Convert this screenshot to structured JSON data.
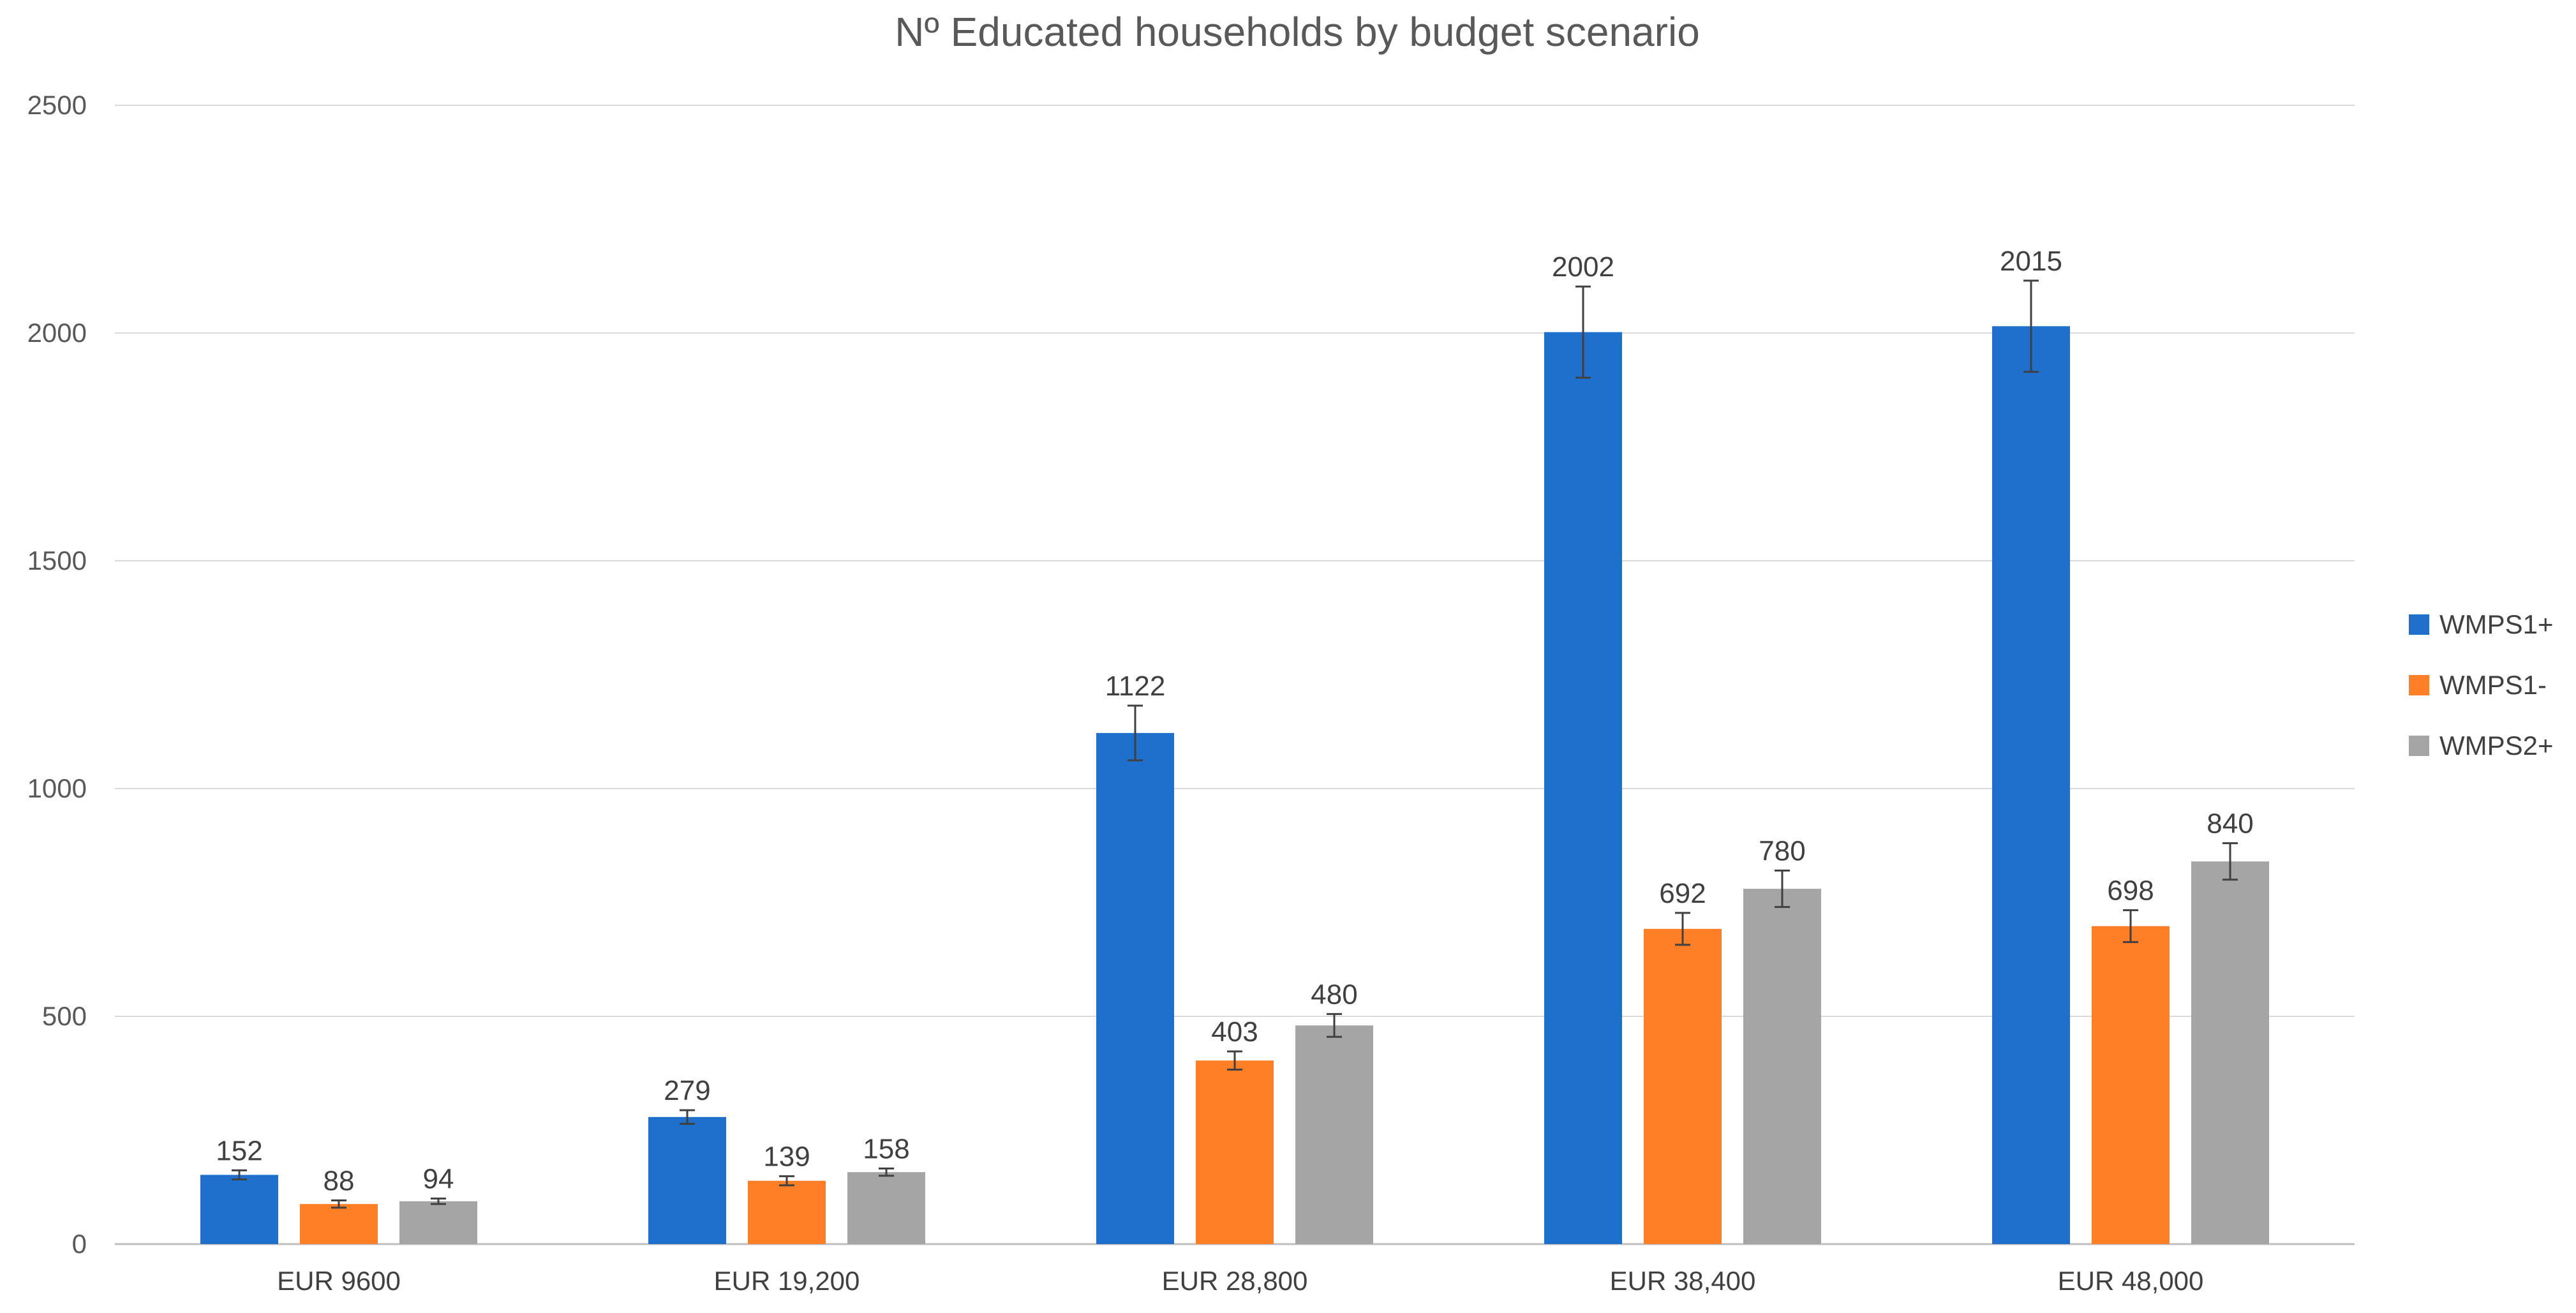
{
  "chart_data": {
    "type": "bar",
    "title": "Nº Educated households by budget scenario",
    "xlabel": "",
    "ylabel": "",
    "ylim": [
      0,
      2500
    ],
    "yticks": [
      0,
      500,
      1000,
      1500,
      2000,
      2500
    ],
    "grid": true,
    "legend_position": "right",
    "categories": [
      "EUR 9600",
      "EUR 19,200",
      "EUR 28,800",
      "EUR 38,400",
      "EUR 48,000"
    ],
    "series": [
      {
        "name": "WMPS1+",
        "color": "#1F6FCC",
        "values": [
          152,
          279,
          1122,
          2002,
          2015
        ],
        "labels": [
          "152",
          "279",
          "1122",
          "2002",
          "2015"
        ],
        "error": [
          10,
          15,
          60,
          100,
          100
        ]
      },
      {
        "name": "WMPS1-",
        "color": "#FF7F27",
        "values": [
          88,
          139,
          403,
          692,
          698
        ],
        "labels": [
          "88",
          "139",
          "403",
          "692",
          "698"
        ],
        "error": [
          8,
          10,
          20,
          35,
          35
        ]
      },
      {
        "name": "WMPS2+",
        "color": "#A5A5A5",
        "values": [
          94,
          158,
          480,
          780,
          840
        ],
        "labels": [
          "94",
          "158",
          "480",
          "780",
          "840"
        ],
        "error": [
          6,
          8,
          25,
          40,
          40
        ]
      }
    ]
  }
}
